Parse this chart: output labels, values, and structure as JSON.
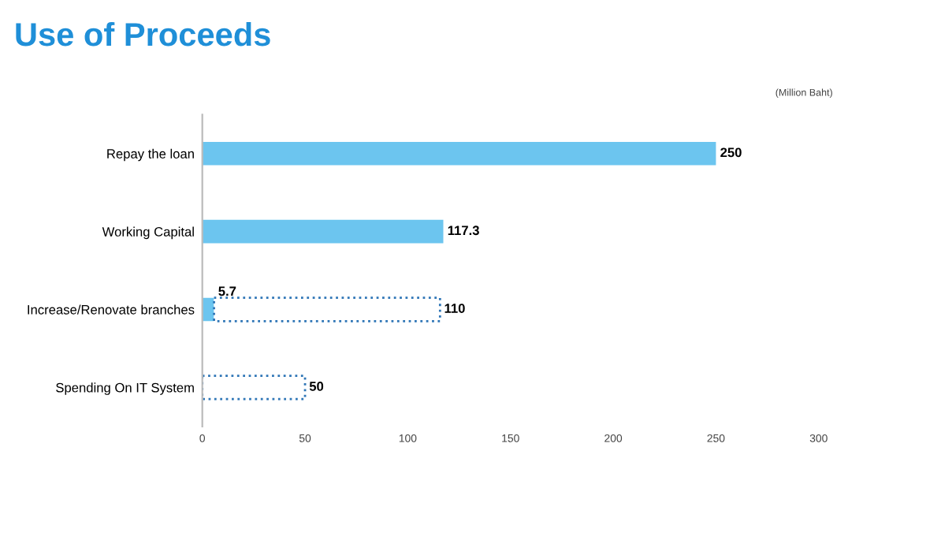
{
  "chart_data": {
    "type": "bar",
    "orientation": "horizontal",
    "stacked": true,
    "title": "Use of Proceeds",
    "annotations": [
      "(Million Baht)"
    ],
    "categories": [
      "Repay the loan",
      "Working Capital",
      "Increase/Renovate branches",
      "Spending On IT System"
    ],
    "series": [
      {
        "color": "#6cc5ef",
        "values": [
          250,
          117.3,
          5.7,
          null
        ]
      },
      {
        "color": "#2e75b6",
        "line_style": "dotted",
        "values": [
          null,
          null,
          110,
          50
        ]
      }
    ],
    "xlim": [
      0,
      300
    ],
    "xticks": [
      0,
      50,
      100,
      150,
      200,
      250,
      300
    ],
    "data_labels": true,
    "grid": false,
    "legend": false
  }
}
